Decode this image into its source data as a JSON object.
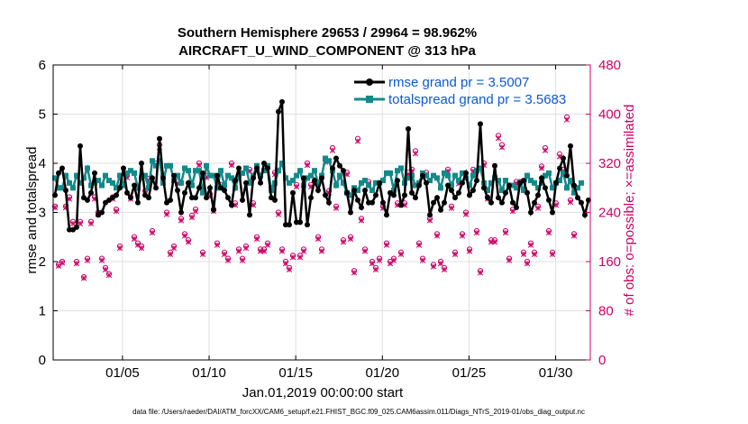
{
  "chart_data": {
    "type": "line",
    "title": "Southern Hemisphere 29653 / 29964 = 98.962%",
    "subtitle": "AIRCRAFT_U_WIND_COMPONENT @ 313 hPa",
    "xlabel": "Jan.01,2019 00:00:00 start",
    "ylabel": "rmse and totalspread",
    "y2label": "# of obs: o=possible; ×=assimilated",
    "footnote": "data file: /Users/raeder/DAI/ATM_forcXX/CAM6_setup/f.e21.FHIST_BGC.f09_025.CAM6assim.011/Diags_NTrS_2019-01/obs_diag_output.nc",
    "xlim": [
      1,
      32
    ],
    "ylim": [
      0,
      6
    ],
    "y2lim": [
      0,
      480
    ],
    "xtick_positions": [
      5,
      10,
      15,
      20,
      25,
      30
    ],
    "xtick_labels": [
      "01/05",
      "01/10",
      "01/15",
      "01/20",
      "01/25",
      "01/30"
    ],
    "ytick_labels": [
      "0",
      "1",
      "2",
      "3",
      "4",
      "5",
      "6"
    ],
    "y2tick_labels": [
      "0",
      "80",
      "160",
      "240",
      "320",
      "400",
      "480"
    ],
    "grid": true,
    "legend_position": "top-right",
    "colors": {
      "rmse": "#000000",
      "spread": "#138a8a",
      "obs": "#cc0066",
      "grid": "#e0e0e0",
      "legend_text": "#0a5ad4"
    },
    "series": [
      {
        "name": "rmse grand pr = 3.5007",
        "axis": "left",
        "values": [
          3.35,
          3.8,
          3.9,
          3.45,
          2.65,
          2.65,
          2.7,
          4.35,
          3.3,
          3.25,
          3.4,
          3.8,
          2.95,
          3.0,
          3.2,
          3.25,
          3.3,
          3.35,
          3.5,
          3.9,
          3.4,
          3.3,
          3.55,
          3.2,
          4.0,
          3.35,
          3.3,
          3.7,
          3.5,
          4.5,
          3.7,
          3.2,
          3.25,
          3.75,
          3.45,
          3.0,
          3.4,
          3.6,
          3.3,
          3.3,
          3.5,
          3.8,
          3.3,
          3.5,
          3.05,
          3.75,
          3.5,
          3.45,
          3.3,
          3.15,
          3.65,
          3.9,
          3.25,
          3.6,
          2.95,
          3.7,
          3.9,
          3.6,
          4.0,
          3.9,
          3.3,
          3.25,
          5.05,
          5.25,
          2.75,
          2.75,
          3.4,
          2.8,
          2.8,
          3.7,
          2.75,
          3.3,
          3.65,
          3.45,
          3.7,
          3.35,
          3.2,
          3.9,
          4.1,
          3.95,
          3.85,
          3.4,
          3.0,
          3.45,
          3.25,
          3.1,
          3.45,
          3.2,
          3.2,
          3.35,
          3.6,
          3.2,
          2.95,
          3.4,
          3.35,
          3.65,
          3.15,
          3.35,
          4.7,
          3.4,
          3.3,
          3.55,
          3.75,
          3.6,
          2.95,
          3.2,
          3.3,
          3.05,
          3.2,
          3.55,
          3.45,
          3.3,
          3.4,
          3.6,
          3.8,
          3.35,
          3.45,
          3.65,
          4.8,
          3.5,
          3.3,
          3.2,
          3.95,
          3.3,
          3.2,
          3.4,
          3.55,
          3.2,
          3.1,
          3.6,
          3.65,
          3.4,
          3.0,
          3.2,
          3.35,
          3.7,
          3.5,
          3.25,
          3.0,
          3.6,
          3.9,
          4.1,
          3.75,
          4.35,
          3.55,
          3.3,
          3.2,
          2.95,
          3.25
        ]
      },
      {
        "name": "totalspread grand pr = 3.5683",
        "axis": "left",
        "values": [
          3.7,
          3.5,
          3.5,
          3.75,
          3.6,
          3.5,
          3.75,
          3.6,
          3.7,
          3.9,
          3.55,
          3.6,
          3.65,
          3.55,
          3.75,
          3.65,
          3.6,
          3.5,
          3.75,
          3.55,
          3.8,
          3.85,
          3.8,
          3.5,
          3.7,
          3.75,
          3.5,
          4.05,
          3.95,
          4.05,
          3.6,
          3.95,
          3.95,
          3.65,
          3.75,
          3.6,
          3.9,
          3.85,
          3.55,
          3.85,
          3.85,
          3.4,
          3.95,
          3.75,
          3.75,
          3.5,
          3.85,
          3.55,
          3.75,
          3.7,
          3.5,
          3.75,
          3.8,
          3.9,
          3.6,
          3.75,
          3.95,
          3.75,
          3.85,
          3.95,
          3.45,
          3.6,
          3.85,
          4.0,
          3.7,
          3.6,
          3.65,
          3.75,
          3.85,
          3.55,
          3.7,
          3.75,
          3.85,
          3.6,
          3.75,
          4.1,
          4.05,
          3.85,
          3.55,
          3.75,
          3.6,
          3.4,
          3.35,
          3.5,
          3.45,
          3.6,
          3.65,
          3.55,
          3.45,
          3.6,
          3.6,
          3.65,
          3.8,
          3.8,
          3.45,
          3.85,
          3.9,
          3.6,
          3.7,
          3.75,
          3.55,
          3.6,
          3.8,
          3.75,
          3.65,
          3.75,
          3.7,
          3.5,
          3.8,
          3.75,
          3.55,
          3.75,
          3.65,
          3.8,
          3.7,
          3.55,
          3.75,
          3.85,
          3.9,
          3.6,
          3.45,
          3.6,
          3.7,
          3.65,
          3.45,
          3.65,
          3.55,
          3.55,
          3.5,
          3.6,
          3.45,
          3.75,
          3.65,
          3.6,
          3.5,
          3.6,
          3.75,
          3.8,
          3.5,
          3.6,
          3.65,
          3.8,
          3.5,
          3.65,
          3.4,
          3.5,
          3.6
        ]
      },
      {
        "name": "# of obs possible",
        "axis": "right",
        "marker": "o",
        "values": [
          250,
          155,
          160,
          250,
          265,
          225,
          160,
          225,
          135,
          165,
          225,
          265,
          240,
          165,
          150,
          140,
          265,
          245,
          185,
          290,
          300,
          265,
          200,
          190,
          185,
          275,
          295,
          210,
          320,
          350,
          300,
          240,
          175,
          185,
          290,
          230,
          205,
          195,
          235,
          245,
          320,
          175,
          300,
          270,
          245,
          190,
          285,
          175,
          165,
          320,
          255,
          180,
          165,
          185,
          310,
          255,
          200,
          180,
          180,
          190,
          280,
          305,
          240,
          180,
          160,
          150,
          170,
          285,
          170,
          180,
          320,
          285,
          290,
          200,
          180,
          325,
          275,
          345,
          250,
          300,
          195,
          305,
          200,
          145,
          360,
          230,
          180,
          290,
          160,
          150,
          165,
          250,
          190,
          160,
          165,
          255,
          175,
          255,
          305,
          310,
          340,
          190,
          165,
          305,
          230,
          155,
          205,
          160,
          150,
          310,
          250,
          175,
          290,
          205,
          240,
          180,
          310,
          210,
          145,
          320,
          265,
          195,
          195,
          365,
          350,
          210,
          165,
          245,
          290,
          290,
          175,
          160,
          190,
          175,
          250,
          315,
          345,
          210,
          175,
          255,
          335,
          310,
          395,
          260,
          205
        ]
      },
      {
        "name": "# of obs assimilated",
        "axis": "right",
        "marker": "*",
        "values": [
          248,
          153,
          158,
          248,
          262,
          222,
          157,
          222,
          133,
          162,
          222,
          262,
          237,
          162,
          147,
          138,
          262,
          242,
          182,
          287,
          297,
          262,
          197,
          187,
          182,
          272,
          292,
          207,
          317,
          346,
          297,
          237,
          172,
          182,
          287,
          227,
          202,
          192,
          232,
          242,
          317,
          172,
          297,
          267,
          242,
          187,
          282,
          172,
          162,
          317,
          252,
          177,
          162,
          182,
          307,
          252,
          197,
          177,
          177,
          187,
          277,
          302,
          237,
          177,
          157,
          147,
          167,
          282,
          167,
          177,
          317,
          282,
          287,
          197,
          177,
          322,
          272,
          341,
          247,
          297,
          192,
          302,
          197,
          142,
          356,
          227,
          177,
          287,
          157,
          147,
          162,
          247,
          187,
          157,
          162,
          252,
          172,
          252,
          302,
          307,
          336,
          187,
          162,
          302,
          227,
          152,
          202,
          157,
          147,
          307,
          247,
          172,
          287,
          202,
          237,
          177,
          307,
          207,
          142,
          317,
          262,
          192,
          192,
          361,
          346,
          207,
          162,
          242,
          287,
          287,
          172,
          157,
          187,
          172,
          247,
          312,
          341,
          207,
          172,
          252,
          331,
          307,
          391,
          257,
          202
        ]
      }
    ]
  }
}
